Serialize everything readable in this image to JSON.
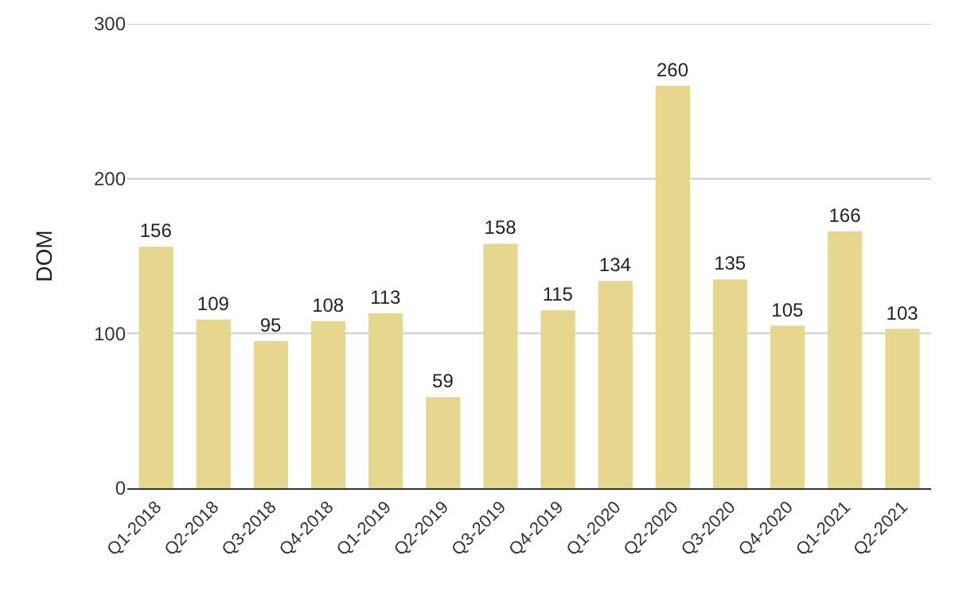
{
  "chart_data": {
    "type": "bar",
    "ylabel": "DOM",
    "categories": [
      "Q1-2018",
      "Q2-2018",
      "Q3-2018",
      "Q4-2018",
      "Q1-2019",
      "Q2-2019",
      "Q3-2019",
      "Q4-2019",
      "Q1-2020",
      "Q2-2020",
      "Q3-2020",
      "Q4-2020",
      "Q1-2021",
      "Q2-2021"
    ],
    "values": [
      156,
      109,
      95,
      108,
      113,
      59,
      158,
      115,
      134,
      260,
      135,
      105,
      166,
      103
    ],
    "color": "#e6d78f",
    "ylim": [
      0,
      300
    ],
    "yticks": [
      0,
      100,
      200,
      300
    ],
    "grid": "y",
    "data_labels": true
  }
}
